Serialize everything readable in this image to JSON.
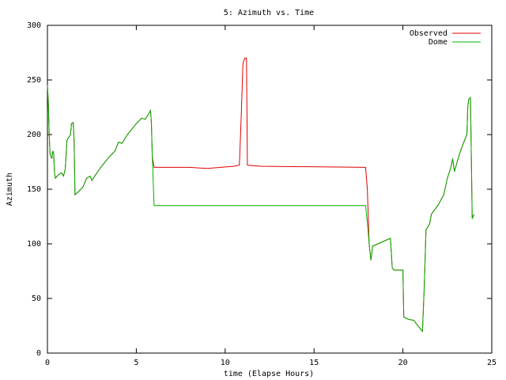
{
  "chart_data": {
    "type": "line",
    "title": "5: Azimuth vs. Time",
    "xlabel": "time (Elapse Hours)",
    "ylabel": "Azimuth",
    "x": [
      0,
      0.05,
      0.1,
      0.15,
      0.25,
      0.3,
      0.35,
      0.4,
      0.45,
      0.6,
      0.8,
      0.9,
      1.0,
      1.1,
      1.3,
      1.35,
      1.45,
      1.5,
      1.55,
      1.7,
      2.0,
      2.2,
      2.4,
      2.5,
      2.7,
      3.0,
      3.5,
      3.8,
      4.0,
      4.2,
      4.5,
      5.0,
      5.3,
      5.5,
      5.7,
      5.8,
      5.85,
      5.9,
      6.0,
      8.0,
      9.0,
      10.5,
      10.8,
      10.9,
      11.0,
      11.1,
      11.2,
      11.25,
      12.0,
      17.9,
      18.0,
      18.1,
      18.2,
      18.3,
      18.6,
      19.0,
      19.3,
      19.4,
      19.5,
      20.0,
      20.05,
      20.3,
      20.6,
      21.0,
      21.1,
      21.2,
      21.3,
      21.5,
      21.6,
      22.0,
      22.3,
      22.5,
      22.7,
      22.8,
      22.9,
      23.0,
      23.2,
      23.4,
      23.6,
      23.65,
      23.7,
      23.8,
      23.85,
      23.9,
      24.0
    ],
    "series": [
      {
        "name": "Observed",
        "color": "#e00000",
        "values": [
          245,
          230,
          200,
          182,
          178,
          185,
          183,
          165,
          160,
          163,
          165,
          162,
          168,
          195,
          200,
          210,
          211,
          195,
          145,
          147,
          152,
          160,
          162,
          158,
          163,
          170,
          180,
          185,
          193,
          192,
          200,
          210,
          215,
          214,
          219,
          222,
          210,
          180,
          170,
          170,
          169,
          171,
          172,
          215,
          265,
          270,
          270,
          172,
          171,
          170,
          150,
          100,
          85,
          98,
          100,
          103,
          105,
          78,
          76,
          76,
          33,
          31,
          30,
          22,
          20,
          60,
          113,
          118,
          127,
          136,
          145,
          160,
          170,
          178,
          166,
          172,
          183,
          192,
          200,
          225,
          232,
          234,
          180,
          123,
          127
        ]
      },
      {
        "name": "Dome",
        "color": "#00b000",
        "values": [
          245,
          230,
          200,
          182,
          178,
          185,
          183,
          165,
          160,
          163,
          165,
          162,
          168,
          195,
          200,
          210,
          211,
          195,
          145,
          147,
          152,
          160,
          162,
          158,
          163,
          170,
          180,
          185,
          193,
          192,
          200,
          210,
          215,
          214,
          219,
          222,
          210,
          180,
          135,
          135,
          135,
          135,
          135,
          135,
          135,
          135,
          135,
          135,
          135,
          135,
          120,
          100,
          85,
          98,
          100,
          103,
          105,
          78,
          76,
          76,
          33,
          31,
          30,
          22,
          20,
          60,
          113,
          118,
          127,
          136,
          145,
          160,
          170,
          178,
          166,
          172,
          183,
          192,
          200,
          225,
          232,
          234,
          180,
          123,
          127
        ]
      }
    ],
    "xlim": [
      0,
      25
    ],
    "xticks": [
      0,
      5,
      10,
      15,
      20,
      25
    ],
    "ylim": [
      0,
      300
    ],
    "yticks": [
      0,
      50,
      100,
      150,
      200,
      250,
      300
    ],
    "legend": "upper right"
  }
}
